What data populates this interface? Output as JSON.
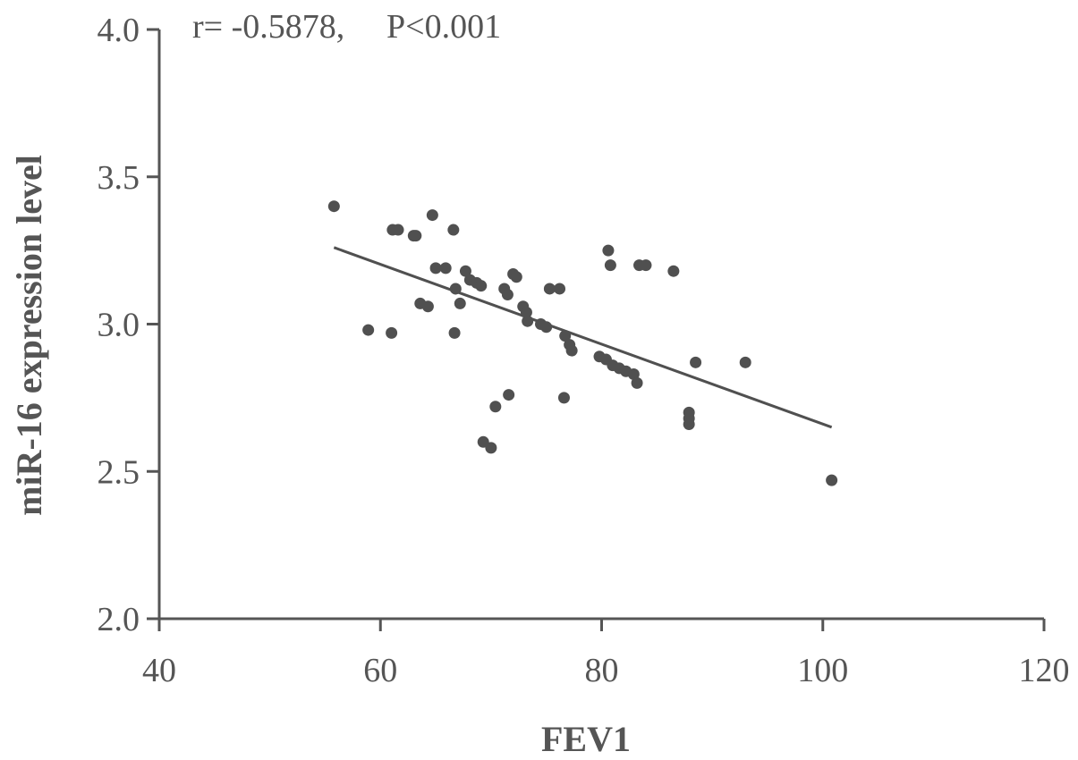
{
  "chart_data": {
    "type": "scatter",
    "title": "",
    "xlabel": "FEV1",
    "ylabel": "miR-16 expression level",
    "xlim": [
      40,
      120
    ],
    "ylim": [
      2.0,
      4.0
    ],
    "xticks": [
      40,
      60,
      80,
      100,
      120
    ],
    "yticks": [
      2.0,
      2.5,
      3.0,
      3.5,
      4.0
    ],
    "xtick_labels": [
      "40",
      "60",
      "80",
      "100",
      "120"
    ],
    "ytick_labels": [
      "2.0",
      "2.5",
      "3.0",
      "3.5",
      "4.0"
    ],
    "grid": false,
    "colors": {
      "points": "#505050",
      "line": "#505050",
      "axes": "#555555"
    },
    "annotation": {
      "r_text": "r= -0.5878,",
      "p_text": "P<0.001"
    },
    "trendline": {
      "x": [
        55.8,
        100.8
      ],
      "y": [
        3.26,
        2.65
      ]
    },
    "points": [
      {
        "x": 55.8,
        "y": 3.4
      },
      {
        "x": 58.9,
        "y": 2.98
      },
      {
        "x": 61.0,
        "y": 2.97
      },
      {
        "x": 61.1,
        "y": 3.32
      },
      {
        "x": 61.6,
        "y": 3.32
      },
      {
        "x": 63.0,
        "y": 3.3
      },
      {
        "x": 63.2,
        "y": 3.3
      },
      {
        "x": 63.6,
        "y": 3.07
      },
      {
        "x": 64.3,
        "y": 3.06
      },
      {
        "x": 64.7,
        "y": 3.37
      },
      {
        "x": 65.0,
        "y": 3.19
      },
      {
        "x": 65.9,
        "y": 3.19
      },
      {
        "x": 66.6,
        "y": 3.32
      },
      {
        "x": 66.7,
        "y": 2.97
      },
      {
        "x": 66.8,
        "y": 3.12
      },
      {
        "x": 67.2,
        "y": 3.07
      },
      {
        "x": 67.7,
        "y": 3.18
      },
      {
        "x": 68.1,
        "y": 3.15
      },
      {
        "x": 68.7,
        "y": 3.14
      },
      {
        "x": 69.1,
        "y": 3.13
      },
      {
        "x": 69.3,
        "y": 2.6
      },
      {
        "x": 70.0,
        "y": 2.58
      },
      {
        "x": 70.4,
        "y": 2.72
      },
      {
        "x": 71.2,
        "y": 3.12
      },
      {
        "x": 71.5,
        "y": 3.1
      },
      {
        "x": 71.6,
        "y": 2.76
      },
      {
        "x": 72.0,
        "y": 3.17
      },
      {
        "x": 72.3,
        "y": 3.16
      },
      {
        "x": 72.9,
        "y": 3.06
      },
      {
        "x": 73.2,
        "y": 3.04
      },
      {
        "x": 73.3,
        "y": 3.01
      },
      {
        "x": 74.5,
        "y": 3.0
      },
      {
        "x": 75.0,
        "y": 2.99
      },
      {
        "x": 75.3,
        "y": 3.12
      },
      {
        "x": 76.2,
        "y": 3.12
      },
      {
        "x": 76.6,
        "y": 2.75
      },
      {
        "x": 76.7,
        "y": 2.96
      },
      {
        "x": 77.1,
        "y": 2.93
      },
      {
        "x": 77.3,
        "y": 2.91
      },
      {
        "x": 79.8,
        "y": 2.89
      },
      {
        "x": 80.4,
        "y": 2.88
      },
      {
        "x": 80.6,
        "y": 3.25
      },
      {
        "x": 80.8,
        "y": 3.2
      },
      {
        "x": 81.0,
        "y": 2.86
      },
      {
        "x": 81.6,
        "y": 2.85
      },
      {
        "x": 82.2,
        "y": 2.84
      },
      {
        "x": 82.9,
        "y": 2.83
      },
      {
        "x": 83.2,
        "y": 2.8
      },
      {
        "x": 83.4,
        "y": 3.2
      },
      {
        "x": 84.0,
        "y": 3.2
      },
      {
        "x": 86.5,
        "y": 3.18
      },
      {
        "x": 87.9,
        "y": 2.7
      },
      {
        "x": 87.9,
        "y": 2.68
      },
      {
        "x": 87.9,
        "y": 2.66
      },
      {
        "x": 88.5,
        "y": 2.87
      },
      {
        "x": 93.0,
        "y": 2.87
      },
      {
        "x": 100.8,
        "y": 2.47
      }
    ]
  }
}
